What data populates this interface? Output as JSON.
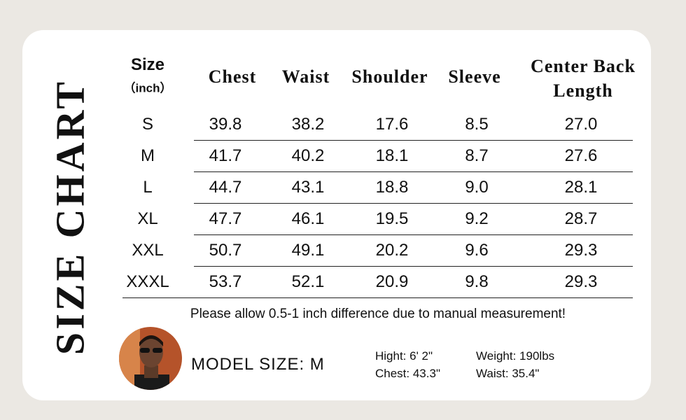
{
  "title": "SIZE CHART",
  "table": {
    "size_header": "Size",
    "unit_header": "（inch）",
    "columns": [
      "Chest",
      "Waist",
      "Shoulder",
      "Sleeve",
      "Center Back Length"
    ],
    "rows": [
      [
        "S",
        "39.8",
        "38.2",
        "17.6",
        "8.5",
        "27.0"
      ],
      [
        "M",
        "41.7",
        "40.2",
        "18.1",
        "8.7",
        "27.6"
      ],
      [
        "L",
        "44.7",
        "43.1",
        "18.8",
        "9.0",
        "28.1"
      ],
      [
        "XL",
        "47.7",
        "46.1",
        "19.5",
        "9.2",
        "28.7"
      ],
      [
        "XXL",
        "50.7",
        "49.1",
        "20.2",
        "9.6",
        "29.3"
      ],
      [
        "XXXL",
        "53.7",
        "52.1",
        "20.9",
        "9.8",
        "29.3"
      ]
    ]
  },
  "note": "Please allow 0.5-1 inch difference due to manual measurement!",
  "model": {
    "size": "MODEL SIZE: M",
    "stats": [
      "Hight: 6' 2\"",
      "Weight: 190lbs",
      "Chest: 43.3\"",
      "Waist: 35.4\""
    ]
  }
}
